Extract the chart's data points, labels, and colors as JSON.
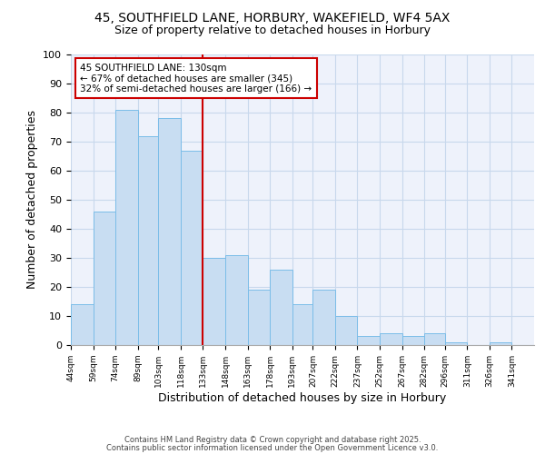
{
  "title": "45, SOUTHFIELD LANE, HORBURY, WAKEFIELD, WF4 5AX",
  "subtitle": "Size of property relative to detached houses in Horbury",
  "xlabel": "Distribution of detached houses by size in Horbury",
  "ylabel": "Number of detached properties",
  "bar_color": "#c8ddf2",
  "bar_edge_color": "#7bbde8",
  "grid_color": "#c8d8ec",
  "background_color": "#eef2fb",
  "bins": [
    44,
    59,
    74,
    89,
    103,
    118,
    133,
    148,
    163,
    178,
    193,
    207,
    222,
    237,
    252,
    267,
    282,
    296,
    311,
    326,
    341,
    356
  ],
  "heights": [
    14,
    46,
    81,
    72,
    78,
    67,
    30,
    31,
    19,
    26,
    14,
    19,
    10,
    3,
    4,
    3,
    4,
    1,
    0,
    1,
    0
  ],
  "tick_labels": [
    "44sqm",
    "59sqm",
    "74sqm",
    "89sqm",
    "103sqm",
    "118sqm",
    "133sqm",
    "148sqm",
    "163sqm",
    "178sqm",
    "193sqm",
    "207sqm",
    "222sqm",
    "237sqm",
    "252sqm",
    "267sqm",
    "282sqm",
    "296sqm",
    "311sqm",
    "326sqm",
    "341sqm"
  ],
  "vline_x": 133,
  "vline_color": "#cc0000",
  "annotation_text": "45 SOUTHFIELD LANE: 130sqm\n← 67% of detached houses are smaller (345)\n32% of semi-detached houses are larger (166) →",
  "annotation_box_color": "#ffffff",
  "annotation_box_edge": "#cc0000",
  "ylim": [
    0,
    100
  ],
  "yticks": [
    0,
    10,
    20,
    30,
    40,
    50,
    60,
    70,
    80,
    90,
    100
  ],
  "footer1": "Contains HM Land Registry data © Crown copyright and database right 2025.",
  "footer2": "Contains public sector information licensed under the Open Government Licence v3.0.",
  "title_fontsize": 10,
  "subtitle_fontsize": 9,
  "annotation_fontsize": 7.5
}
